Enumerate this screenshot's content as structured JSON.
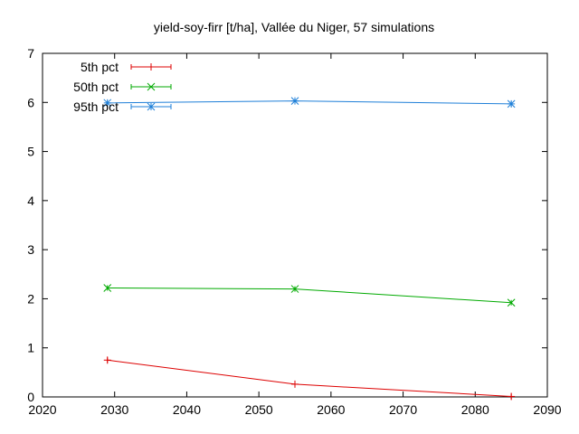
{
  "chart_data": {
    "type": "line",
    "title": "yield-soy-firr [t/ha], Vallée du Niger, 57 simulations",
    "xlabel": "",
    "ylabel": "",
    "xlim": [
      2020,
      2090
    ],
    "ylim": [
      0,
      7
    ],
    "xticks": [
      "2020",
      "2030",
      "2040",
      "2050",
      "2060",
      "2070",
      "2080",
      "2090"
    ],
    "yticks": [
      "0",
      "1",
      "2",
      "3",
      "4",
      "5",
      "6",
      "7"
    ],
    "grid": false,
    "legend_position": "top-left",
    "x": [
      2029,
      2055,
      2085
    ],
    "series": [
      {
        "name": "5th pct",
        "color": "#dd0000",
        "marker": "plus",
        "values": [
          0.75,
          0.26,
          0.01
        ]
      },
      {
        "name": "50th pct",
        "color": "#00aa00",
        "marker": "cross",
        "values": [
          2.22,
          2.2,
          1.92
        ]
      },
      {
        "name": "95th pct",
        "color": "#1e7fd8",
        "marker": "asterisk",
        "values": [
          5.99,
          6.03,
          5.97
        ]
      }
    ]
  }
}
